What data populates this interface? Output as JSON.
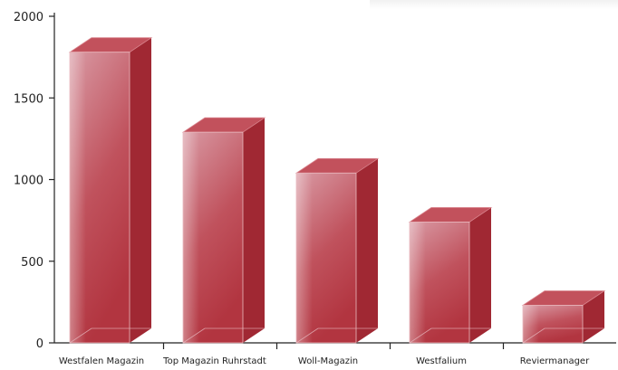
{
  "chart_data": {
    "type": "bar",
    "style": "3d-glass",
    "categories": [
      "Westfalen Magazin",
      "Top Magazin Ruhrstadt",
      "Woll-Magazin",
      "Westfalium",
      "Reviermanager"
    ],
    "values": [
      1780,
      1290,
      1040,
      740,
      230
    ],
    "ylim": [
      0,
      2000
    ],
    "yticks": [
      0,
      500,
      1000,
      1500,
      2000
    ],
    "title": "",
    "xlabel": "",
    "ylabel": "",
    "grid": false,
    "legend": "none"
  },
  "colors": {
    "bar_front_top": "#d99aa4",
    "bar_front_bottom": "#b23540",
    "bar_side": "#a02833",
    "bar_top": "#c2515c",
    "axis": "#222222"
  }
}
